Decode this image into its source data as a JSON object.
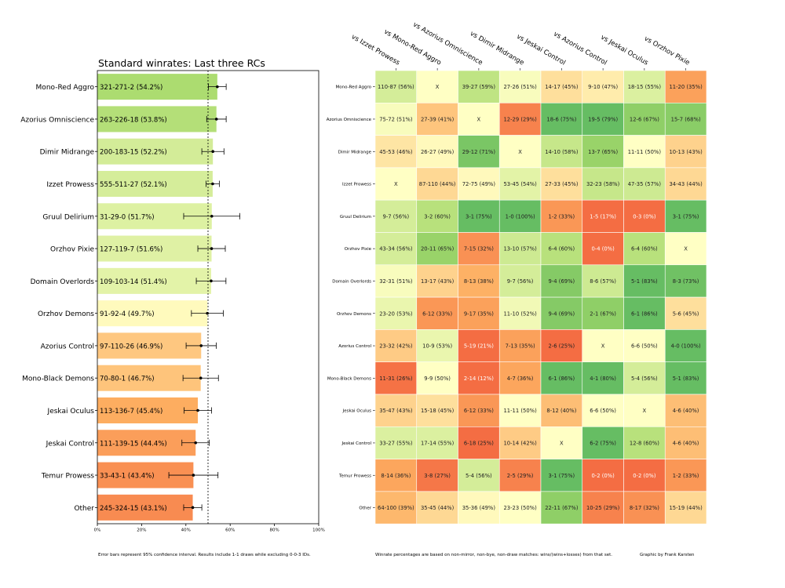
{
  "left_chart": {
    "title": "Standard winrates: Last three RCs",
    "type": "bar",
    "xlim": [
      0,
      100
    ],
    "reference_line": 50,
    "ticks": [
      {
        "value": 0,
        "label": "0%"
      },
      {
        "value": 20,
        "label": "20%"
      },
      {
        "value": 40,
        "label": "40%"
      },
      {
        "value": 60,
        "label": "60%"
      },
      {
        "value": 80,
        "label": "80%"
      },
      {
        "value": 100,
        "label": "100%"
      }
    ],
    "rows": [
      {
        "deck": "Mono-Red Aggro",
        "record": "321-271-2 (54.2%)",
        "winrate": 54.2,
        "ci_low": 50.2,
        "ci_high": 58.2
      },
      {
        "deck": "Azorius Omniscience",
        "record": "263-226-18 (53.8%)",
        "winrate": 53.8,
        "ci_low": 49.4,
        "ci_high": 58.2
      },
      {
        "deck": "Dimir Midrange",
        "record": "200-183-15 (52.2%)",
        "winrate": 52.2,
        "ci_low": 47.2,
        "ci_high": 57.2
      },
      {
        "deck": "Izzet Prowess",
        "record": "555-511-27 (52.1%)",
        "winrate": 52.1,
        "ci_low": 49.1,
        "ci_high": 55.1
      },
      {
        "deck": "Gruul Delirium",
        "record": "31-29-0 (51.7%)",
        "winrate": 51.7,
        "ci_low": 39.0,
        "ci_high": 64.4
      },
      {
        "deck": "Orzhov Pixie",
        "record": "127-119-7 (51.6%)",
        "winrate": 51.6,
        "ci_low": 45.4,
        "ci_high": 57.8
      },
      {
        "deck": "Domain Overlords",
        "record": "109-103-14 (51.4%)",
        "winrate": 51.4,
        "ci_low": 44.7,
        "ci_high": 58.1
      },
      {
        "deck": "Orzhov Demons",
        "record": "91-92-4 (49.7%)",
        "winrate": 49.7,
        "ci_low": 42.5,
        "ci_high": 56.9
      },
      {
        "deck": "Azorius Control",
        "record": "97-110-26 (46.9%)",
        "winrate": 46.9,
        "ci_low": 40.1,
        "ci_high": 53.7
      },
      {
        "deck": "Mono-Black Demons",
        "record": "70-80-1 (46.7%)",
        "winrate": 46.7,
        "ci_low": 38.7,
        "ci_high": 54.7
      },
      {
        "deck": "Jeskai Oculus",
        "record": "113-136-7 (45.4%)",
        "winrate": 45.4,
        "ci_low": 39.2,
        "ci_high": 51.6
      },
      {
        "deck": "Jeskai Control",
        "record": "111-139-15 (44.4%)",
        "winrate": 44.4,
        "ci_low": 38.2,
        "ci_high": 50.6
      },
      {
        "deck": "Temur Prowess",
        "record": "33-43-1 (43.4%)",
        "winrate": 43.4,
        "ci_low": 32.3,
        "ci_high": 54.5
      },
      {
        "deck": "Other",
        "record": "245-324-15 (43.1%)",
        "winrate": 43.1,
        "ci_low": 39.0,
        "ci_high": 47.2
      }
    ],
    "footnote": "Error bars represent 95% confidence interval. Results include 1-1 draws while excluding 0-0-3 IDs."
  },
  "chart_data": [
    {
      "type": "bar",
      "title": "Standard winrates: Last three RCs",
      "categories": [
        "Mono-Red Aggro",
        "Azorius Omniscience",
        "Dimir Midrange",
        "Izzet Prowess",
        "Gruul Delirium",
        "Orzhov Pixie",
        "Domain Overlords",
        "Orzhov Demons",
        "Azorius Control",
        "Mono-Black Demons",
        "Jeskai Oculus",
        "Jeskai Control",
        "Temur Prowess",
        "Other"
      ],
      "values": [
        54.2,
        53.8,
        52.2,
        52.1,
        51.7,
        51.6,
        51.4,
        49.7,
        46.9,
        46.7,
        45.4,
        44.4,
        43.4,
        43.1
      ],
      "xlabel": "",
      "ylabel": "",
      "xlim": [
        0,
        100
      ]
    },
    {
      "type": "heatmap",
      "rows": [
        "Mono-Red Aggro",
        "Azorius Omniscience",
        "Dimir Midrange",
        "Izzet Prowess",
        "Gruul Delirium",
        "Orzhov Pixie",
        "Domain Overlords",
        "Orzhov Demons",
        "Azorius Control",
        "Mono-Black Demons",
        "Jeskai Oculus",
        "Jeskai Control",
        "Temur Prowess",
        "Other"
      ],
      "columns": [
        "vs Izzet Prowess",
        "vs Mono-Red Aggro",
        "vs Azorius Omniscience",
        "vs Dimir Midrange",
        "vs Jeskai Control",
        "vs Azorius Control",
        "vs Jeskai Oculus",
        "vs Orzhov Pixie"
      ]
    }
  ],
  "matrix": {
    "columns": [
      "vs Izzet Prowess",
      "vs Mono-Red Aggro",
      "vs Azorius Omniscience",
      "vs Dimir Midrange",
      "vs Jeskai Control",
      "vs Azorius Control",
      "vs Jeskai Oculus",
      "vs Orzhov Pixie"
    ],
    "rows": [
      {
        "deck": "Mono-Red Aggro",
        "cells": [
          {
            "text": "110-87 (56%)",
            "pct": 56
          },
          {
            "text": "X",
            "pct": null
          },
          {
            "text": "39-27 (59%)",
            "pct": 59
          },
          {
            "text": "27-26 (51%)",
            "pct": 51
          },
          {
            "text": "14-17 (45%)",
            "pct": 45
          },
          {
            "text": "9-10 (47%)",
            "pct": 47
          },
          {
            "text": "18-15 (55%)",
            "pct": 55
          },
          {
            "text": "11-20 (35%)",
            "pct": 35
          }
        ]
      },
      {
        "deck": "Azorius Omniscience",
        "cells": [
          {
            "text": "75-72 (51%)",
            "pct": 51
          },
          {
            "text": "27-39 (41%)",
            "pct": 41
          },
          {
            "text": "X",
            "pct": null
          },
          {
            "text": "12-29 (29%)",
            "pct": 29
          },
          {
            "text": "18-6 (75%)",
            "pct": 75
          },
          {
            "text": "19-5 (79%)",
            "pct": 79
          },
          {
            "text": "12-6 (67%)",
            "pct": 67
          },
          {
            "text": "15-7 (68%)",
            "pct": 68
          }
        ]
      },
      {
        "deck": "Dimir Midrange",
        "cells": [
          {
            "text": "45-53 (46%)",
            "pct": 46
          },
          {
            "text": "26-27 (49%)",
            "pct": 49
          },
          {
            "text": "29-12 (71%)",
            "pct": 71
          },
          {
            "text": "X",
            "pct": null
          },
          {
            "text": "14-10 (58%)",
            "pct": 58
          },
          {
            "text": "13-7 (65%)",
            "pct": 65
          },
          {
            "text": "11-11 (50%)",
            "pct": 50
          },
          {
            "text": "10-13 (43%)",
            "pct": 43
          }
        ]
      },
      {
        "deck": "Izzet Prowess",
        "cells": [
          {
            "text": "X",
            "pct": null
          },
          {
            "text": "87-110 (44%)",
            "pct": 44
          },
          {
            "text": "72-75 (49%)",
            "pct": 49
          },
          {
            "text": "53-45 (54%)",
            "pct": 54
          },
          {
            "text": "27-33 (45%)",
            "pct": 45
          },
          {
            "text": "32-23 (58%)",
            "pct": 58
          },
          {
            "text": "47-35 (57%)",
            "pct": 57
          },
          {
            "text": "34-43 (44%)",
            "pct": 44
          }
        ]
      },
      {
        "deck": "Gruul Delirium",
        "cells": [
          {
            "text": "9-7 (56%)",
            "pct": 56
          },
          {
            "text": "3-2 (60%)",
            "pct": 60
          },
          {
            "text": "3-1 (75%)",
            "pct": 75
          },
          {
            "text": "1-0 (100%)",
            "pct": 100
          },
          {
            "text": "1-2 (33%)",
            "pct": 33
          },
          {
            "text": "1-5 (17%)",
            "pct": 17
          },
          {
            "text": "0-3 (0%)",
            "pct": 0
          },
          {
            "text": "3-1 (75%)",
            "pct": 75
          }
        ]
      },
      {
        "deck": "Orzhov Pixie",
        "cells": [
          {
            "text": "43-34 (56%)",
            "pct": 56
          },
          {
            "text": "20-11 (65%)",
            "pct": 65
          },
          {
            "text": "7-15 (32%)",
            "pct": 32
          },
          {
            "text": "13-10 (57%)",
            "pct": 57
          },
          {
            "text": "6-4 (60%)",
            "pct": 60
          },
          {
            "text": "0-4 (0%)",
            "pct": 0
          },
          {
            "text": "6-4 (60%)",
            "pct": 60
          },
          {
            "text": "X",
            "pct": null
          }
        ]
      },
      {
        "deck": "Domain Overlords",
        "cells": [
          {
            "text": "32-31 (51%)",
            "pct": 51
          },
          {
            "text": "13-17 (43%)",
            "pct": 43
          },
          {
            "text": "8-13 (38%)",
            "pct": 38
          },
          {
            "text": "9-7 (56%)",
            "pct": 56
          },
          {
            "text": "9-4 (69%)",
            "pct": 69
          },
          {
            "text": "8-6 (57%)",
            "pct": 57
          },
          {
            "text": "5-1 (83%)",
            "pct": 83
          },
          {
            "text": "8-3 (73%)",
            "pct": 73
          }
        ]
      },
      {
        "deck": "Orzhov Demons",
        "cells": [
          {
            "text": "23-20 (53%)",
            "pct": 53
          },
          {
            "text": "6-12 (33%)",
            "pct": 33
          },
          {
            "text": "9-17 (35%)",
            "pct": 35
          },
          {
            "text": "11-10 (52%)",
            "pct": 52
          },
          {
            "text": "9-4 (69%)",
            "pct": 69
          },
          {
            "text": "2-1 (67%)",
            "pct": 67
          },
          {
            "text": "6-1 (86%)",
            "pct": 86
          },
          {
            "text": "5-6 (45%)",
            "pct": 45
          }
        ]
      },
      {
        "deck": "Azorius Control",
        "cells": [
          {
            "text": "23-32 (42%)",
            "pct": 42
          },
          {
            "text": "10-9 (53%)",
            "pct": 53
          },
          {
            "text": "5-19 (21%)",
            "pct": 21
          },
          {
            "text": "7-13 (35%)",
            "pct": 35
          },
          {
            "text": "2-6 (25%)",
            "pct": 25
          },
          {
            "text": "X",
            "pct": null
          },
          {
            "text": "6-6 (50%)",
            "pct": 50
          },
          {
            "text": "4-0 (100%)",
            "pct": 100
          }
        ]
      },
      {
        "deck": "Mono-Black Demons",
        "cells": [
          {
            "text": "11-31 (26%)",
            "pct": 26
          },
          {
            "text": "9-9 (50%)",
            "pct": 50
          },
          {
            "text": "2-14 (12%)",
            "pct": 12
          },
          {
            "text": "4-7 (36%)",
            "pct": 36
          },
          {
            "text": "6-1 (86%)",
            "pct": 86
          },
          {
            "text": "4-1 (80%)",
            "pct": 80
          },
          {
            "text": "5-4 (56%)",
            "pct": 56
          },
          {
            "text": "5-1 (83%)",
            "pct": 83
          }
        ]
      },
      {
        "deck": "Jeskai Oculus",
        "cells": [
          {
            "text": "35-47 (43%)",
            "pct": 43
          },
          {
            "text": "15-18 (45%)",
            "pct": 45
          },
          {
            "text": "6-12 (33%)",
            "pct": 33
          },
          {
            "text": "11-11 (50%)",
            "pct": 50
          },
          {
            "text": "8-12 (40%)",
            "pct": 40
          },
          {
            "text": "6-6 (50%)",
            "pct": 50
          },
          {
            "text": "X",
            "pct": null
          },
          {
            "text": "4-6 (40%)",
            "pct": 40
          }
        ]
      },
      {
        "deck": "Jeskai Control",
        "cells": [
          {
            "text": "33-27 (55%)",
            "pct": 55
          },
          {
            "text": "17-14 (55%)",
            "pct": 55
          },
          {
            "text": "6-18 (25%)",
            "pct": 25
          },
          {
            "text": "10-14 (42%)",
            "pct": 42
          },
          {
            "text": "X",
            "pct": null
          },
          {
            "text": "6-2 (75%)",
            "pct": 75
          },
          {
            "text": "12-8 (60%)",
            "pct": 60
          },
          {
            "text": "4-6 (40%)",
            "pct": 40
          }
        ]
      },
      {
        "deck": "Temur Prowess",
        "cells": [
          {
            "text": "8-14 (36%)",
            "pct": 36
          },
          {
            "text": "3-8 (27%)",
            "pct": 27
          },
          {
            "text": "5-4 (56%)",
            "pct": 56
          },
          {
            "text": "2-5 (29%)",
            "pct": 29
          },
          {
            "text": "3-1 (75%)",
            "pct": 75
          },
          {
            "text": "0-2 (0%)",
            "pct": 0
          },
          {
            "text": "0-2 (0%)",
            "pct": 0
          },
          {
            "text": "1-2 (33%)",
            "pct": 33
          }
        ]
      },
      {
        "deck": "Other",
        "cells": [
          {
            "text": "64-100 (39%)",
            "pct": 39
          },
          {
            "text": "35-45 (44%)",
            "pct": 44
          },
          {
            "text": "35-36 (49%)",
            "pct": 49
          },
          {
            "text": "23-23 (50%)",
            "pct": 50
          },
          {
            "text": "22-11 (67%)",
            "pct": 67
          },
          {
            "text": "10-25 (29%)",
            "pct": 29
          },
          {
            "text": "8-17 (32%)",
            "pct": 32
          },
          {
            "text": "15-19 (44%)",
            "pct": 44
          }
        ]
      }
    ]
  },
  "footer": {
    "note": "Winrate percentages are based on non-mirror, non-bye, non-draw matches: wins/(wins+losses) from that set.",
    "credit": "Graphic by Frank Karsten"
  },
  "colors": {
    "x_cell": "#ffffc4",
    "line": "#000000",
    "frame": "#888888"
  }
}
